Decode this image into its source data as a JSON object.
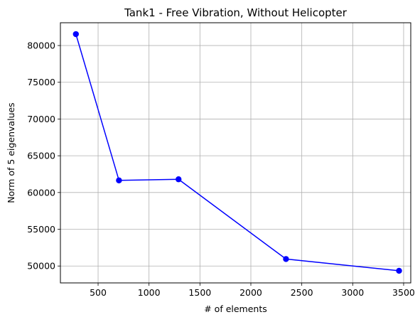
{
  "chart_data": {
    "type": "line",
    "title": "Tank1 - Free Vibration, Without Helicopter",
    "xlabel": "# of elements",
    "ylabel": "Norm of 5 eigenvalues",
    "xlim": [
      130,
      3570
    ],
    "ylim": [
      47700,
      83100
    ],
    "x_ticks": [
      500,
      1000,
      1500,
      2000,
      2500,
      3000,
      3500
    ],
    "y_ticks": [
      50000,
      55000,
      60000,
      65000,
      70000,
      75000,
      80000
    ],
    "grid": true,
    "series": [
      {
        "color": "#0000ff",
        "marker": "circle",
        "x": [
          282,
          705,
          1290,
          2345,
          3455
        ],
        "y": [
          81550,
          61650,
          61800,
          50950,
          49350
        ]
      }
    ]
  }
}
